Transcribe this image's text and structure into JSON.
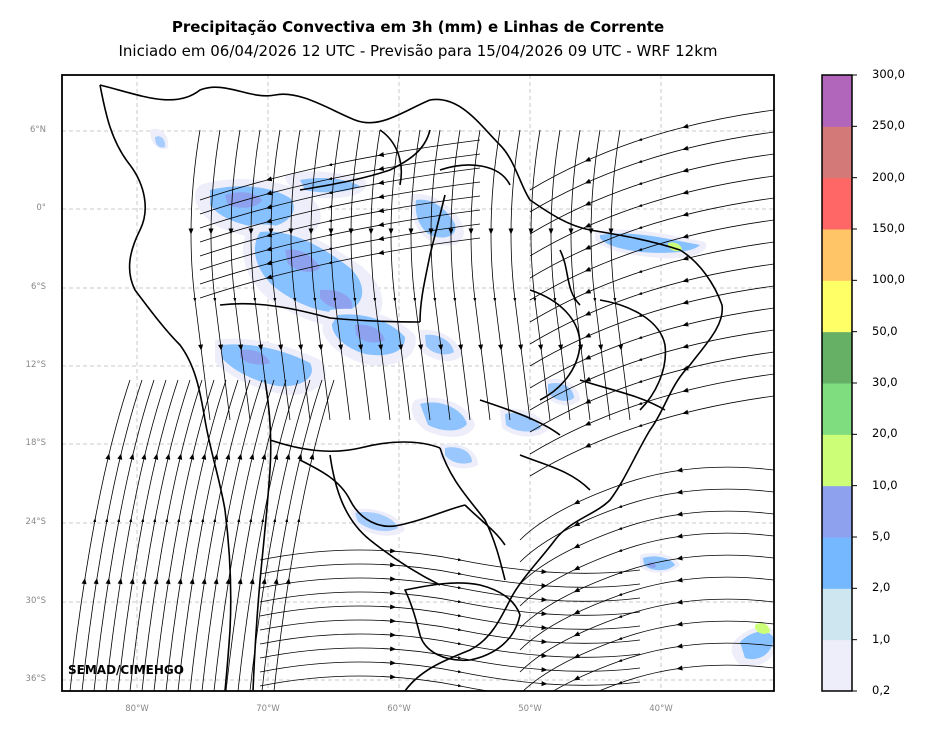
{
  "header": {
    "title": "Precipitação Convectiva em 3h (mm) e Linhas de Corrente",
    "subtitle": "Iniciado em 06/04/2026 12 UTC - Previsão para 15/04/2026 09 UTC - WRF 12km"
  },
  "credit": "SEMAD/CIMEHGO",
  "lat_ticks": [
    "6°N",
    "0°",
    "6°S",
    "12°S",
    "18°S",
    "24°S",
    "30°S",
    "36°S"
  ],
  "lon_ticks": [
    "80°W",
    "70°W",
    "60°W",
    "50°W",
    "40°W"
  ],
  "colorbar": {
    "labels": [
      "0,2",
      "1,0",
      "2,0",
      "5,0",
      "10,0",
      "20,0",
      "30,0",
      "50,0",
      "100,0",
      "150,0",
      "200,0",
      "250,0",
      "300,0"
    ],
    "colors": [
      "#eeeefa",
      "#cde6ef",
      "#76b8ff",
      "#8da1ee",
      "#ccff77",
      "#7fdd80",
      "#66b066",
      "#ffff66",
      "#ffc566",
      "#ff6666",
      "#d37a78",
      "#b266bb"
    ]
  }
}
